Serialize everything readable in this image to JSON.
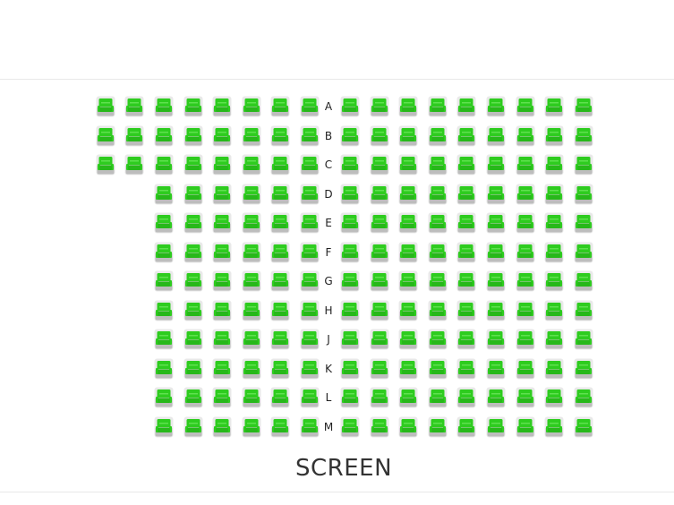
{
  "theater": {
    "screen_label": "SCREEN",
    "seat_color": "#2ecc1f",
    "seat_base_color": "#bdbdbd",
    "rows": [
      {
        "label": "A",
        "left_seats": 8,
        "right_seats": 9
      },
      {
        "label": "B",
        "left_seats": 8,
        "right_seats": 9
      },
      {
        "label": "C",
        "left_seats": 8,
        "right_seats": 9
      },
      {
        "label": "D",
        "left_seats": 6,
        "right_seats": 9
      },
      {
        "label": "E",
        "left_seats": 6,
        "right_seats": 9
      },
      {
        "label": "F",
        "left_seats": 6,
        "right_seats": 9
      },
      {
        "label": "G",
        "left_seats": 6,
        "right_seats": 9
      },
      {
        "label": "H",
        "left_seats": 6,
        "right_seats": 9
      },
      {
        "label": "J",
        "left_seats": 6,
        "right_seats": 9
      },
      {
        "label": "K",
        "left_seats": 6,
        "right_seats": 9
      },
      {
        "label": "L",
        "left_seats": 6,
        "right_seats": 9
      },
      {
        "label": "M",
        "left_seats": 6,
        "right_seats": 9
      }
    ]
  }
}
